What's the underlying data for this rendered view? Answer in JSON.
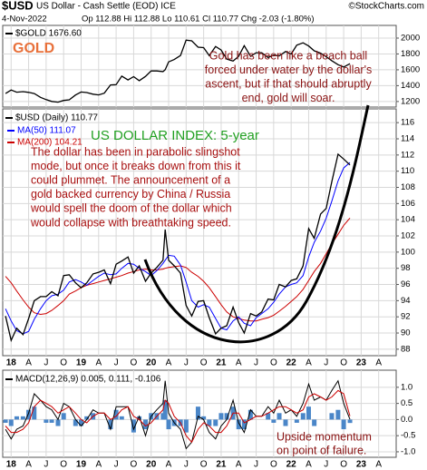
{
  "header": {
    "symbol": "$USD",
    "name": "US Dollar - Cash Settle (EOD) ICE",
    "source": "©StockCharts.com",
    "date": "4-Nov-2022",
    "quote": "Op 112.88  Hi 112.88  Lo 110.61  Cl 110.77  Chg -2.03 (-1.80%)"
  },
  "chart_data": [
    {
      "type": "line",
      "x": [
        2017.92,
        2018.0,
        2018.08,
        2018.17,
        2018.25,
        2018.33,
        2018.42,
        2018.5,
        2018.58,
        2018.67,
        2018.75,
        2018.83,
        2018.92,
        2019.0,
        2019.08,
        2019.17,
        2019.25,
        2019.33,
        2019.42,
        2019.5,
        2019.58,
        2019.67,
        2019.75,
        2019.83,
        2019.92,
        2020.0,
        2020.08,
        2020.17,
        2020.2,
        2020.25,
        2020.33,
        2020.42,
        2020.5,
        2020.58,
        2020.67,
        2020.75,
        2020.83,
        2020.92,
        2021.0,
        2021.08,
        2021.17,
        2021.25,
        2021.33,
        2021.42,
        2021.5,
        2021.58,
        2021.67,
        2021.75,
        2021.83,
        2021.92,
        2022.0,
        2022.08,
        2022.17,
        2022.25,
        2022.33,
        2022.42,
        2022.5,
        2022.58,
        2022.67,
        2022.75,
        2022.84
      ],
      "series": [
        {
          "name": "$GOLD 1676.60",
          "color": "#000000",
          "values": [
            1300,
            1345,
            1318,
            1325,
            1315,
            1300,
            1253,
            1224,
            1201,
            1192,
            1214,
            1222,
            1282,
            1320,
            1313,
            1292,
            1283,
            1305,
            1409,
            1413,
            1520,
            1472,
            1513,
            1463,
            1517,
            1585,
            1585,
            1577,
            1600,
            1700,
            1730,
            1780,
            1975,
            1965,
            1885,
            1880,
            1780,
            1895,
            1850,
            1735,
            1710,
            1770,
            1905,
            1770,
            1815,
            1815,
            1755,
            1785,
            1775,
            1830,
            1800,
            1910,
            1940,
            1900,
            1840,
            1810,
            1765,
            1715,
            1665,
            1635,
            1676.6
          ]
        }
      ],
      "title": "GOLD",
      "annotation_lines": [
        "Gold has been like a beach ball",
        "forced under water by the dollar's",
        "ascent, but if that should abruptly",
        "end, gold will soar."
      ],
      "xlim": [
        2017.88,
        2023.5
      ],
      "ylim": [
        1130,
        2160
      ],
      "yticks": [
        1200,
        1400,
        1600,
        1800,
        2000
      ],
      "grid": true
    },
    {
      "type": "line",
      "x": [
        2017.92,
        2018.0,
        2018.08,
        2018.17,
        2018.25,
        2018.33,
        2018.42,
        2018.5,
        2018.58,
        2018.67,
        2018.75,
        2018.83,
        2018.92,
        2019.0,
        2019.08,
        2019.17,
        2019.25,
        2019.33,
        2019.42,
        2019.5,
        2019.58,
        2019.67,
        2019.75,
        2019.83,
        2019.92,
        2020.0,
        2020.08,
        2020.17,
        2020.2,
        2020.25,
        2020.33,
        2020.42,
        2020.5,
        2020.58,
        2020.67,
        2020.75,
        2020.83,
        2020.92,
        2021.0,
        2021.08,
        2021.17,
        2021.25,
        2021.33,
        2021.42,
        2021.5,
        2021.58,
        2021.67,
        2021.75,
        2021.83,
        2021.92,
        2022.0,
        2022.08,
        2022.17,
        2022.25,
        2022.33,
        2022.42,
        2022.5,
        2022.58,
        2022.67,
        2022.75,
        2022.84
      ],
      "series": [
        {
          "name": "$USD (Daily) 110.77",
          "color": "#000000",
          "values": [
            92.1,
            89.1,
            90.6,
            89.8,
            91.8,
            94.0,
            94.5,
            94.5,
            95.1,
            94.6,
            97.1,
            97.2,
            96.2,
            95.6,
            96.2,
            97.3,
            97.5,
            97.8,
            96.1,
            98.5,
            98.9,
            99.4,
            97.4,
            98.3,
            96.4,
            97.4,
            98.1,
            99.0,
            102.8,
            99.0,
            98.3,
            97.4,
            93.4,
            92.1,
            93.9,
            94.0,
            91.9,
            89.9,
            90.6,
            90.9,
            93.2,
            91.3,
            90.0,
            92.4,
            92.1,
            92.6,
            94.2,
            94.1,
            96.0,
            95.7,
            96.5,
            96.7,
            98.3,
            102.9,
            101.7,
            104.7,
            105.4,
            108.7,
            112.1,
            111.5,
            110.77
          ]
        },
        {
          "name": "MA(50) 111.07",
          "color": "#0000ff",
          "values": [
            93.0,
            91.5,
            90.3,
            89.9,
            90.2,
            91.7,
            93.0,
            94.0,
            94.6,
            94.8,
            95.3,
            96.3,
            96.6,
            96.3,
            95.9,
            96.5,
            97.0,
            97.4,
            97.2,
            97.3,
            98.0,
            98.6,
            98.5,
            98.0,
            97.6,
            97.1,
            97.7,
            98.6,
            99.0,
            99.6,
            99.5,
            98.4,
            96.3,
            94.0,
            93.2,
            93.5,
            93.2,
            91.8,
            90.6,
            90.4,
            91.5,
            92.0,
            91.2,
            90.9,
            91.9,
            92.4,
            93.0,
            93.8,
            94.8,
            95.7,
            96.0,
            96.2,
            97.1,
            99.4,
            101.2,
            102.6,
            104.2,
            106.3,
            108.8,
            110.4,
            111.07
          ]
        },
        {
          "name": "MA(200) 104.21",
          "color": "#cc0000",
          "values": [
            97.0,
            96.2,
            95.2,
            94.1,
            93.2,
            92.5,
            92.3,
            92.4,
            92.8,
            93.4,
            94.0,
            94.8,
            95.2,
            95.6,
            95.9,
            96.1,
            96.3,
            96.5,
            96.7,
            96.9,
            97.1,
            97.4,
            97.6,
            97.8,
            97.9,
            97.8,
            97.8,
            97.9,
            98.0,
            98.1,
            98.2,
            98.3,
            98.1,
            97.5,
            97.0,
            96.4,
            95.6,
            94.5,
            93.5,
            92.6,
            92.0,
            91.8,
            91.6,
            91.5,
            91.5,
            91.7,
            91.9,
            92.2,
            92.7,
            93.3,
            93.9,
            94.5,
            95.4,
            96.5,
            97.6,
            98.6,
            99.8,
            101.0,
            102.2,
            103.3,
            104.21
          ]
        }
      ],
      "title": "US DOLLAR INDEX: 5-year",
      "annotation_lines": [
        "The dollar has been in parabolic slingshot",
        "mode, but once it breaks down from this it",
        "could plummet. The announcement of a",
        "gold backed currency by China / Russia",
        "would spell the doom of the dollar which",
        "would collapse with    breathtaking speed."
      ],
      "xlim": [
        2017.88,
        2023.5
      ],
      "ylim": [
        87.2,
        117.7
      ],
      "yticks": [
        88,
        90,
        92,
        94,
        96,
        98,
        100,
        102,
        104,
        106,
        108,
        110,
        112,
        114,
        116
      ],
      "xticks": [
        {
          "value": 2018,
          "label": "18"
        },
        {
          "value": 2018.25,
          "label": "A"
        },
        {
          "value": 2018.5,
          "label": "J"
        },
        {
          "value": 2018.75,
          "label": "O"
        },
        {
          "value": 2019,
          "label": "19"
        },
        {
          "value": 2019.25,
          "label": "A"
        },
        {
          "value": 2019.5,
          "label": "J"
        },
        {
          "value": 2019.75,
          "label": "O"
        },
        {
          "value": 2020,
          "label": "20"
        },
        {
          "value": 2020.25,
          "label": "A"
        },
        {
          "value": 2020.5,
          "label": "J"
        },
        {
          "value": 2020.75,
          "label": "O"
        },
        {
          "value": 2021,
          "label": "21"
        },
        {
          "value": 2021.25,
          "label": "A"
        },
        {
          "value": 2021.5,
          "label": "J"
        },
        {
          "value": 2021.75,
          "label": "O"
        },
        {
          "value": 2022,
          "label": "22"
        },
        {
          "value": 2022.25,
          "label": "A"
        },
        {
          "value": 2022.5,
          "label": "J"
        },
        {
          "value": 2022.75,
          "label": "O"
        },
        {
          "value": 2023,
          "label": "23"
        },
        {
          "value": 2023.25,
          "label": "A"
        }
      ],
      "grid": true
    },
    {
      "type": "macd",
      "x": [
        2017.92,
        2018.0,
        2018.08,
        2018.17,
        2018.25,
        2018.33,
        2018.42,
        2018.5,
        2018.58,
        2018.67,
        2018.75,
        2018.83,
        2018.92,
        2019.0,
        2019.08,
        2019.17,
        2019.25,
        2019.33,
        2019.42,
        2019.5,
        2019.58,
        2019.67,
        2019.75,
        2019.83,
        2019.92,
        2020.0,
        2020.08,
        2020.17,
        2020.2,
        2020.25,
        2020.33,
        2020.42,
        2020.5,
        2020.58,
        2020.67,
        2020.75,
        2020.83,
        2020.92,
        2021.0,
        2021.08,
        2021.17,
        2021.25,
        2021.33,
        2021.42,
        2021.5,
        2021.58,
        2021.67,
        2021.75,
        2021.83,
        2021.92,
        2022.0,
        2022.08,
        2022.17,
        2022.25,
        2022.33,
        2022.42,
        2022.5,
        2022.58,
        2022.67,
        2022.75,
        2022.84
      ],
      "legend_label": "MACD(12,26,9) 0.005, 0.111, -0.106",
      "series": [
        {
          "color": "#000000",
          "values": [
            -0.3,
            -0.6,
            -0.3,
            -0.2,
            0.2,
            0.8,
            0.6,
            0.4,
            0.3,
            0.0,
            0.5,
            0.4,
            0.0,
            -0.2,
            0.0,
            0.3,
            0.2,
            0.2,
            -0.3,
            0.4,
            0.4,
            0.4,
            -0.3,
            0.1,
            -0.5,
            0.1,
            0.3,
            0.5,
            1.2,
            0.2,
            -0.1,
            -0.3,
            -0.9,
            -0.7,
            0.1,
            0.0,
            -0.4,
            -0.6,
            -0.2,
            0.0,
            0.6,
            -0.1,
            -0.4,
            0.3,
            0.1,
            0.1,
            0.4,
            0.2,
            0.6,
            0.2,
            0.3,
            0.1,
            0.5,
            1.1,
            0.6,
            0.7,
            0.6,
            0.9,
            1.2,
            0.5,
            0.005
          ]
        },
        {
          "color": "#cc0000",
          "values": [
            -0.2,
            -0.4,
            -0.4,
            -0.3,
            -0.1,
            0.4,
            0.6,
            0.5,
            0.4,
            0.2,
            0.3,
            0.4,
            0.2,
            0.0,
            -0.1,
            0.1,
            0.2,
            0.2,
            0.0,
            0.1,
            0.3,
            0.4,
            0.1,
            0.0,
            -0.2,
            -0.1,
            0.1,
            0.3,
            0.6,
            0.5,
            0.1,
            -0.1,
            -0.5,
            -0.7,
            -0.3,
            -0.1,
            -0.2,
            -0.4,
            -0.4,
            -0.2,
            0.2,
            0.2,
            -0.1,
            0.0,
            0.1,
            0.1,
            0.2,
            0.3,
            0.4,
            0.4,
            0.3,
            0.2,
            0.3,
            0.7,
            0.8,
            0.7,
            0.6,
            0.7,
            0.9,
            0.8,
            0.111
          ]
        }
      ],
      "histogram": {
        "color": "#4a86c8",
        "values": [
          -0.1,
          -0.2,
          0.1,
          0.1,
          0.3,
          0.4,
          0.0,
          -0.1,
          -0.1,
          -0.2,
          0.2,
          0.0,
          -0.2,
          -0.2,
          0.1,
          0.2,
          0.0,
          0.0,
          -0.3,
          0.3,
          0.1,
          0.0,
          -0.4,
          0.1,
          -0.3,
          0.2,
          0.2,
          0.2,
          0.6,
          -0.3,
          -0.2,
          -0.2,
          -0.4,
          0.0,
          0.4,
          0.1,
          -0.2,
          -0.2,
          0.2,
          0.2,
          0.4,
          -0.3,
          -0.3,
          0.3,
          0.0,
          0.0,
          0.2,
          -0.1,
          0.2,
          -0.2,
          0.0,
          -0.1,
          0.2,
          0.4,
          -0.2,
          0.0,
          0.0,
          0.2,
          0.3,
          -0.3,
          -0.106
        ]
      },
      "annotation_lines": [
        "Upside momentum",
        "on point of failure."
      ],
      "xlim": [
        2017.88,
        2023.5
      ],
      "ylim": [
        -1.17,
        1.53
      ],
      "yticks": [
        {
          "value": 1,
          "label": "1.0"
        },
        0.5,
        {
          "value": 0,
          "label": "0.0"
        },
        -0.5,
        {
          "value": -1,
          "label": "-1.0"
        }
      ],
      "grid": true
    }
  ]
}
